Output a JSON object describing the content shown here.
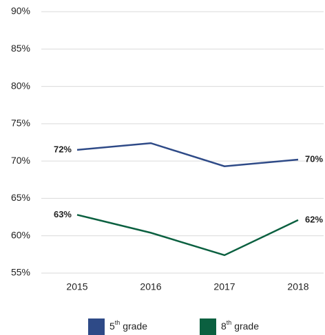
{
  "chart_data": {
    "type": "line",
    "categories": [
      "2015",
      "2016",
      "2017",
      "2018"
    ],
    "series": [
      {
        "name": "5th grade",
        "color": "#2e4a87",
        "values": [
          71.5,
          72.4,
          69.3,
          70.2
        ],
        "value_labels": [
          "72%",
          null,
          null,
          "70%"
        ]
      },
      {
        "name": "8th grade",
        "color": "#0b6040",
        "values": [
          62.8,
          60.4,
          57.4,
          62.1
        ],
        "value_labels": [
          "63%",
          null,
          null,
          "62%"
        ]
      }
    ],
    "ylim": [
      55,
      90
    ],
    "yticks": [
      {
        "value": 55,
        "label": "55%"
      },
      {
        "value": 60,
        "label": "60%"
      },
      {
        "value": 65,
        "label": "65%"
      },
      {
        "value": 70,
        "label": "70%"
      },
      {
        "value": 75,
        "label": "75%"
      },
      {
        "value": 80,
        "label": "80%"
      },
      {
        "value": 85,
        "label": "85%"
      },
      {
        "value": 90,
        "label": "90%"
      }
    ],
    "grid": true,
    "legend": "bottom"
  }
}
